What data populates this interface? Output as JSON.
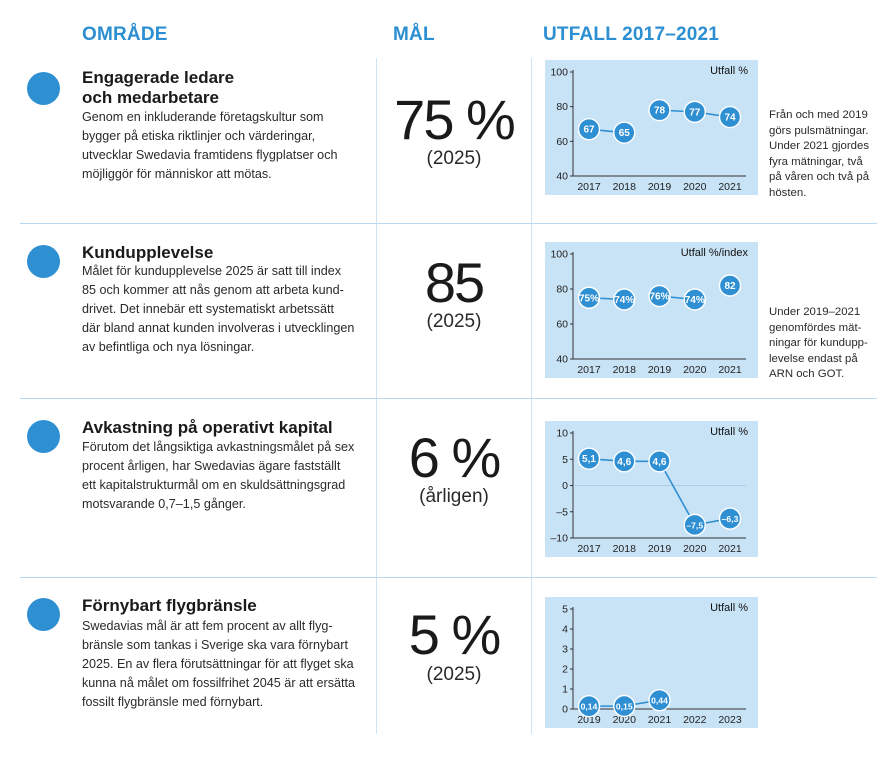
{
  "headers": {
    "area": "OMRÅDE",
    "goal": "MÅL",
    "outcome": "UTFALL 2017–2021"
  },
  "colors": {
    "accent": "#2e8fd3",
    "chart_bg": "#c9e3f6",
    "line": "#2e8fd3"
  },
  "rows": [
    {
      "title": "Engagerade ledare och medarbetare",
      "title_line1": "Engagerade ledare",
      "title_line2": "och medarbetare",
      "desc_lines": [
        "Genom en inkluderande företagskultur som",
        "bygger på etiska riktlinjer och värderingar,",
        "utvecklar Swedavia framtidens flygplatser och",
        "möjliggör för människor att mötas."
      ],
      "goal_value": "75 %",
      "goal_sub": "(2025)",
      "note_lines": [
        "Från och med 2019",
        "görs pulsmätningar.",
        "Under 2021 gjordes",
        "fyra mätningar, två",
        "på våren och två på",
        "hösten."
      ]
    },
    {
      "title": "Kundupplevelse",
      "desc_lines": [
        "Målet för kundupplevelse 2025 är satt till index",
        "85 och kommer att nås genom att arbeta kund-",
        "drivet. Det innebär ett systematiskt arbetssätt",
        "där bland annat kunden involveras i utvecklingen",
        "av befintliga och nya lösningar."
      ],
      "goal_value": "85",
      "goal_sub": "(2025)",
      "note_lines": [
        "Under 2019–2021",
        "genomfördes mät-",
        "ningar för kundupp-",
        "levelse endast på",
        "ARN och GOT."
      ]
    },
    {
      "title": "Avkastning på operativt kapital",
      "desc_lines": [
        "Förutom det långsiktiga avkastningsmålet på sex",
        "procent årligen, har Swedavias ägare fastställt",
        "ett kapitalstrukturmål om en skuldsättningsgrad",
        "motsvarande 0,7–1,5 gånger."
      ],
      "goal_value": "6 %",
      "goal_sub": "(årligen)",
      "note_lines": []
    },
    {
      "title": "Förnybart flygbränsle",
      "desc_lines": [
        "Swedavias mål är att fem procent av allt flyg-",
        "bränsle som tankas i Sverige ska vara förnybart",
        "2025. En av flera förutsättningar för att flyget ska",
        "kunna nå målet om fossilfrihet 2045 är att ersätta",
        "fossilt flygbränsle med förnybart."
      ],
      "goal_value": "5 %",
      "goal_sub": "(2025)",
      "note_lines": []
    }
  ],
  "chart_data": [
    {
      "type": "line",
      "title": "Utfall %",
      "x": [
        "2017",
        "2018",
        "2019",
        "2020",
        "2021"
      ],
      "yticks": [
        "100",
        "80",
        "60",
        "40"
      ],
      "ylim": [
        40,
        100
      ],
      "series": [
        {
          "values": [
            67,
            65,
            null,
            null,
            null
          ],
          "labels": [
            "67",
            "65",
            "",
            "",
            ""
          ]
        },
        {
          "values": [
            null,
            null,
            78,
            77,
            74
          ],
          "labels": [
            "",
            "",
            "78",
            "77",
            "74"
          ]
        }
      ]
    },
    {
      "type": "line",
      "title": "Utfall %/index",
      "x": [
        "2017",
        "2018",
        "2019",
        "2020",
        "2021"
      ],
      "yticks": [
        "100",
        "80",
        "60",
        "40"
      ],
      "ylim": [
        40,
        100
      ],
      "series": [
        {
          "values": [
            75,
            74,
            null,
            null,
            null
          ],
          "labels": [
            "75%",
            "74%",
            "",
            "",
            ""
          ]
        },
        {
          "values": [
            null,
            null,
            76,
            74,
            null
          ],
          "labels": [
            "",
            "",
            "76%",
            "74%",
            ""
          ]
        },
        {
          "values": [
            null,
            null,
            null,
            null,
            82
          ],
          "labels": [
            "",
            "",
            "",
            "",
            "82"
          ]
        }
      ]
    },
    {
      "type": "line",
      "title": "Utfall %",
      "x": [
        "2017",
        "2018",
        "2019",
        "2020",
        "2021"
      ],
      "yticks": [
        "10",
        "5",
        "0",
        "–5",
        "–10"
      ],
      "ylim": [
        -10,
        10
      ],
      "series": [
        {
          "values": [
            5.1,
            4.6,
            4.6,
            -7.5,
            -6.3
          ],
          "labels": [
            "5,1",
            "4,6",
            "4,6",
            "–7,5",
            "–6,3"
          ]
        }
      ]
    },
    {
      "type": "line",
      "title": "Utfall %",
      "x": [
        "2019",
        "2020",
        "2021",
        "2022",
        "2023"
      ],
      "yticks": [
        "5",
        "4",
        "3",
        "2",
        "1",
        "0"
      ],
      "ylim": [
        0,
        5
      ],
      "series": [
        {
          "values": [
            0.14,
            0.15,
            0.44,
            null,
            null
          ],
          "labels": [
            "0,14",
            "0,15",
            "0,44",
            "",
            ""
          ]
        }
      ]
    }
  ]
}
